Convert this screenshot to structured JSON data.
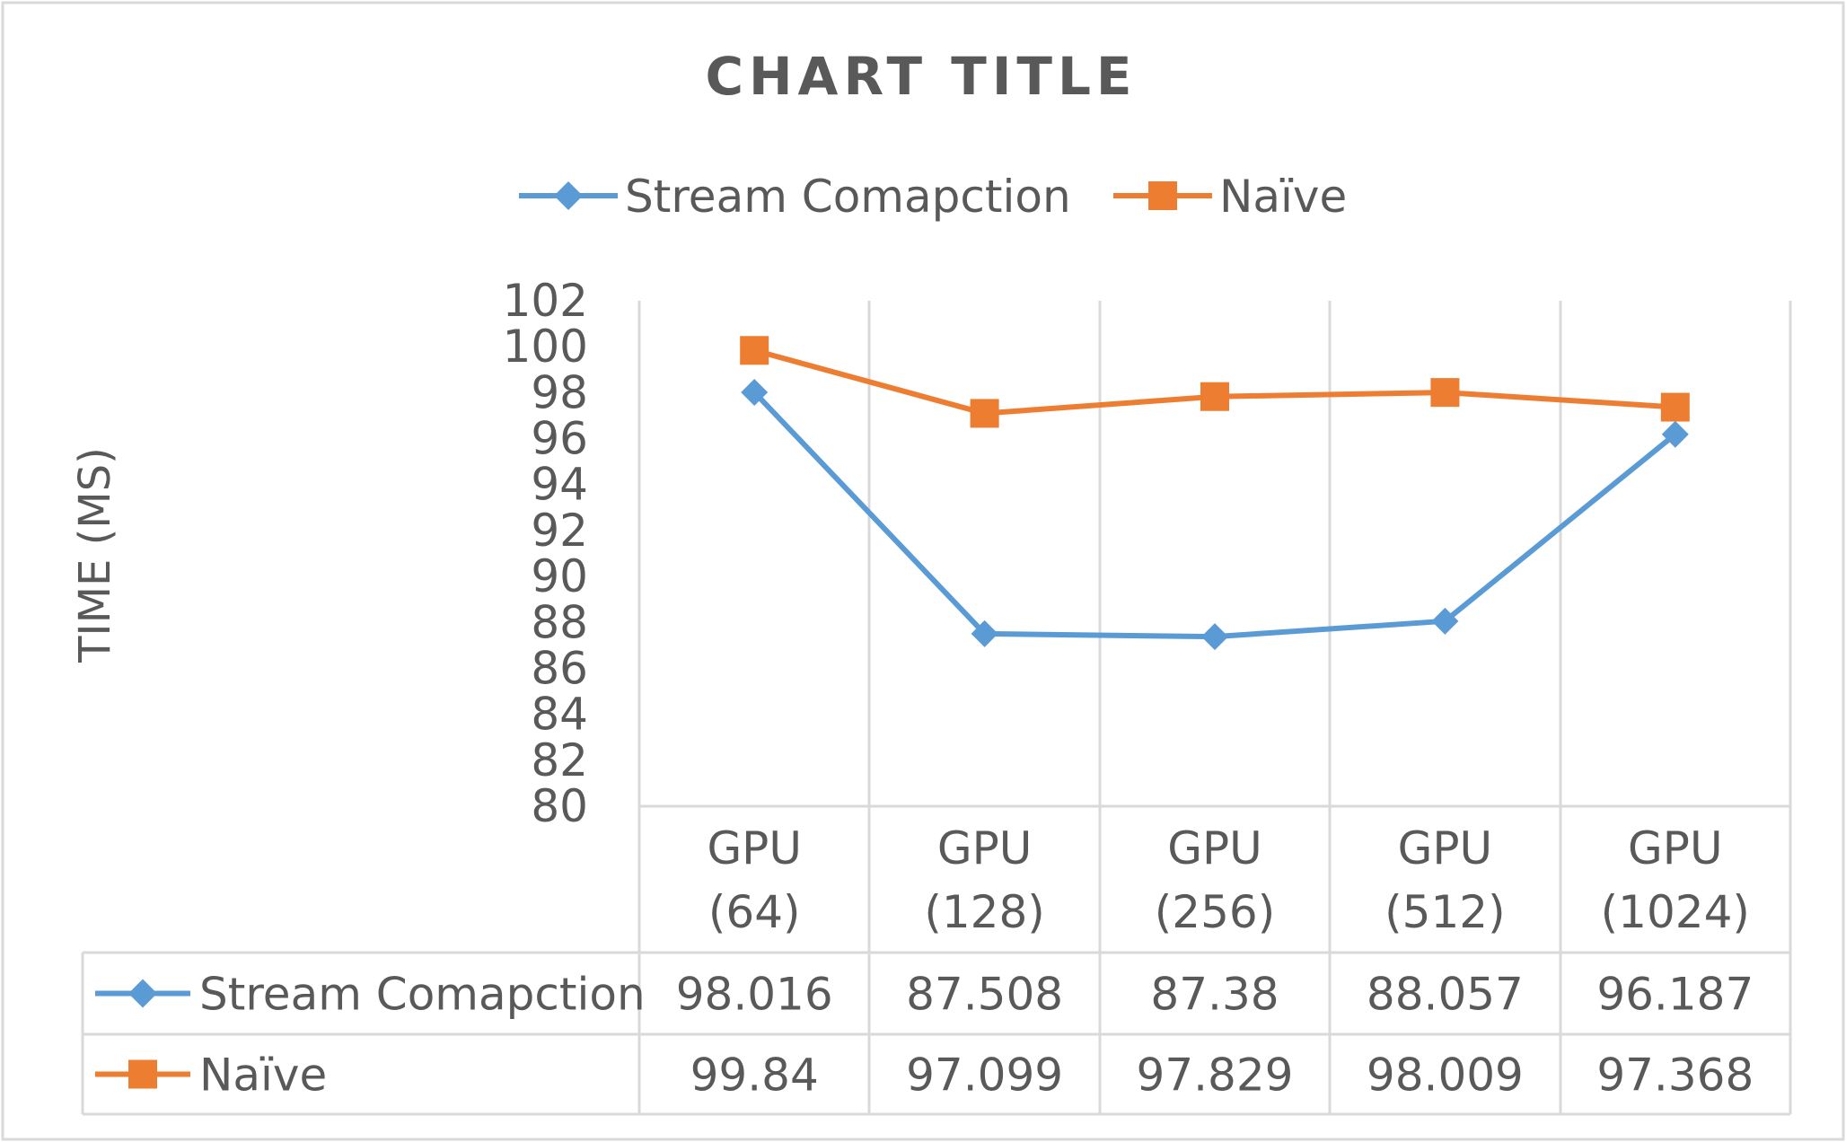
{
  "chart_data": {
    "type": "line",
    "title": "CHART TITLE",
    "ylabel": "TIME (MS)",
    "xlabel": "",
    "ylim": [
      80,
      102
    ],
    "ytick_step": 2,
    "yticks": [
      "80",
      "82",
      "84",
      "86",
      "88",
      "90",
      "92",
      "94",
      "96",
      "98",
      "100",
      "102"
    ],
    "grid": "vertical",
    "legend_position": "top",
    "categories": [
      [
        "GPU",
        "(64)"
      ],
      [
        "GPU",
        "(128)"
      ],
      [
        "GPU",
        "(256)"
      ],
      [
        "GPU",
        "(512)"
      ],
      [
        "GPU",
        "(1024)"
      ]
    ],
    "series": [
      {
        "name": "Stream Comapction",
        "color": "#5B9BD5",
        "marker": "diamond",
        "values": [
          98.016,
          87.508,
          87.38,
          88.057,
          96.187
        ],
        "labels": [
          "98.016",
          "87.508",
          "87.38",
          "88.057",
          "96.187"
        ]
      },
      {
        "name": "Naïve",
        "color": "#ED7D31",
        "marker": "square",
        "values": [
          99.84,
          97.099,
          97.829,
          98.009,
          97.368
        ],
        "labels": [
          "99.84",
          "97.099",
          "97.829",
          "98.009",
          "97.368"
        ]
      }
    ]
  }
}
